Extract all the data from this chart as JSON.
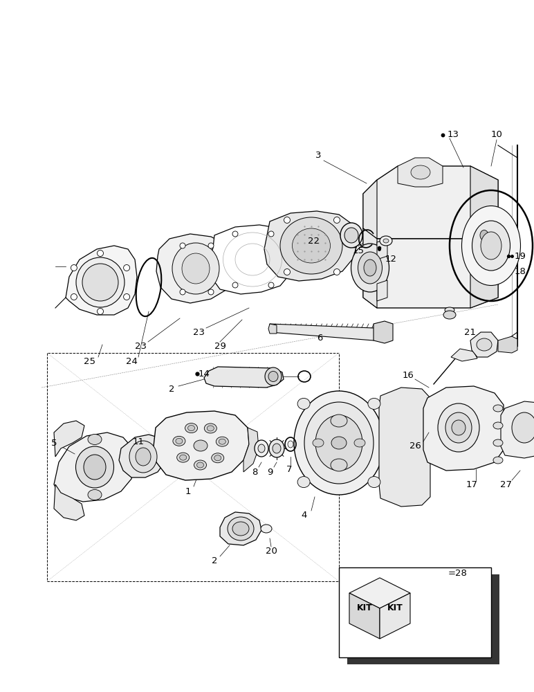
{
  "bg_color": "#ffffff",
  "line_color": "#000000",
  "fig_width": 7.72,
  "fig_height": 10.0
}
